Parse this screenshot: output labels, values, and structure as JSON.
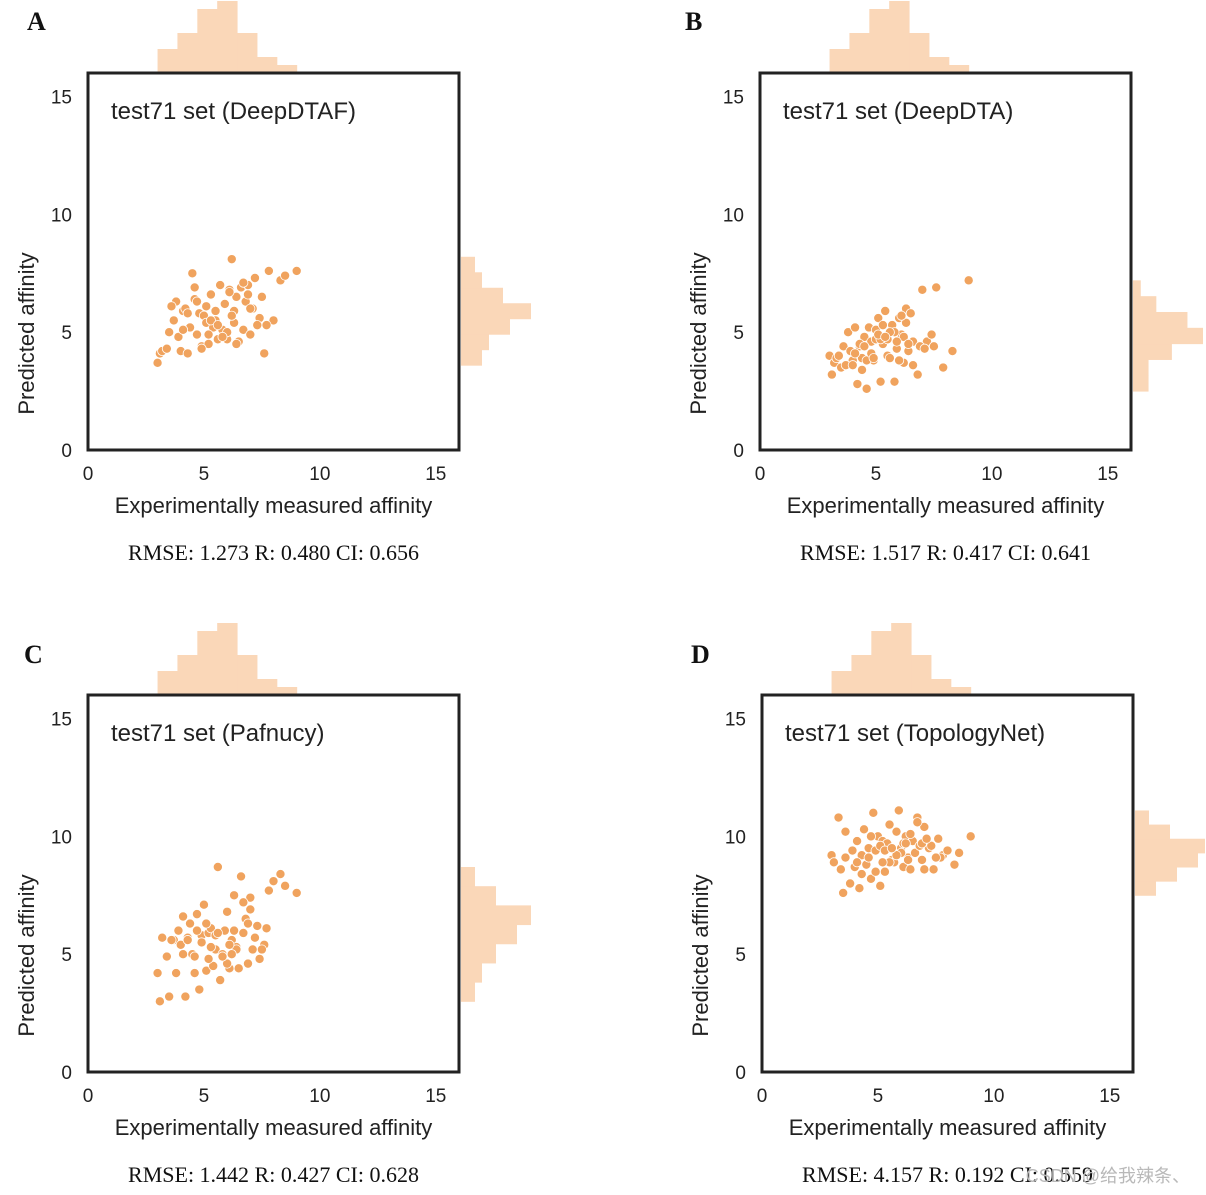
{
  "watermark": "CSDN @给我辣条、",
  "style": {
    "point_color": "#f0a35e",
    "point_edge": "#ffffff",
    "hist_color": "#fad7b8",
    "frame_color": "#222222"
  },
  "chart_data": [
    {
      "type": "scatter",
      "panel": "A",
      "title": "test71 set (DeepDTAF)",
      "xlabel": "Experimentally measured affinity",
      "ylabel": "Predicted affinity",
      "xlim": [
        0,
        16
      ],
      "ylim": [
        0,
        16
      ],
      "xticks": [
        0,
        5,
        10,
        15
      ],
      "yticks": [
        0,
        5,
        10,
        15
      ],
      "stats": "RMSE: 1.273 R: 0.480 CI: 0.656",
      "x": [
        3.0,
        3.1,
        3.2,
        3.4,
        3.5,
        3.7,
        3.8,
        3.9,
        4.0,
        4.1,
        4.2,
        4.3,
        4.4,
        4.5,
        4.6,
        4.7,
        4.8,
        4.9,
        5.0,
        5.1,
        5.2,
        5.3,
        5.4,
        5.5,
        5.6,
        5.7,
        5.8,
        5.9,
        6.0,
        6.1,
        6.2,
        6.3,
        6.4,
        6.5,
        6.6,
        6.7,
        6.8,
        6.9,
        7.0,
        7.2,
        7.4,
        7.6,
        7.8,
        8.0,
        8.3,
        9.0,
        4.6,
        5.1,
        5.5,
        6.0,
        6.4,
        6.9,
        7.3,
        4.3,
        5.8,
        6.3,
        7.1,
        4.9,
        5.3,
        6.7,
        7.7,
        4.1,
        6.1,
        7.0,
        5.6,
        4.7,
        3.6,
        8.5,
        6.2,
        5.2,
        7.5
      ],
      "y": [
        3.7,
        4.1,
        4.2,
        4.3,
        5.0,
        5.5,
        6.3,
        4.8,
        4.2,
        5.9,
        6.0,
        4.1,
        5.2,
        7.5,
        6.4,
        4.9,
        5.8,
        4.4,
        5.7,
        5.4,
        4.5,
        6.6,
        5.2,
        5.9,
        4.7,
        7.0,
        5.1,
        6.2,
        4.7,
        6.8,
        8.1,
        5.4,
        6.5,
        4.6,
        6.9,
        5.1,
        6.3,
        7.0,
        4.9,
        7.3,
        5.6,
        4.1,
        7.6,
        5.5,
        7.2,
        7.6,
        6.9,
        6.1,
        5.5,
        5.0,
        4.5,
        6.6,
        5.3,
        5.8,
        4.8,
        5.9,
        6.0,
        4.3,
        5.5,
        7.1,
        5.3,
        5.1,
        6.7,
        6.0,
        5.3,
        6.3,
        6.1,
        7.4,
        5.7,
        4.9,
        6.5
      ],
      "histx": {
        "range": [
          3,
          9
        ],
        "counts": [
          3,
          5,
          8,
          9,
          5,
          2,
          1
        ]
      },
      "histy": {
        "range": [
          3.6,
          8.2
        ],
        "counts": [
          3,
          4,
          7,
          10,
          6,
          3,
          2
        ]
      }
    },
    {
      "type": "scatter",
      "panel": "B",
      "title": "test71 set (DeepDTA)",
      "xlabel": "Experimentally measured affinity",
      "ylabel": "Predicted affinity",
      "xlim": [
        0,
        16
      ],
      "ylim": [
        0,
        16
      ],
      "xticks": [
        0,
        5,
        10,
        15
      ],
      "yticks": [
        0,
        5,
        10,
        15
      ],
      "stats": "RMSE: 1.517 R: 0.417 CI: 0.641",
      "x": [
        3.0,
        3.1,
        3.2,
        3.3,
        3.5,
        3.6,
        3.8,
        3.9,
        4.0,
        4.1,
        4.2,
        4.3,
        4.4,
        4.5,
        4.6,
        4.7,
        4.8,
        4.9,
        5.0,
        5.1,
        5.2,
        5.3,
        5.4,
        5.5,
        5.6,
        5.7,
        5.8,
        5.9,
        6.0,
        6.1,
        6.2,
        6.3,
        6.4,
        6.5,
        6.6,
        6.8,
        7.0,
        7.2,
        7.4,
        7.6,
        7.9,
        8.3,
        9.0,
        4.3,
        4.6,
        5.0,
        5.5,
        6.0,
        6.3,
        6.9,
        4.1,
        5.2,
        5.8,
        6.6,
        7.1,
        3.7,
        4.8,
        5.3,
        6.2,
        4.4,
        5.6,
        6.4,
        3.4,
        4.9,
        5.9,
        7.5,
        4.0,
        5.1,
        6.1,
        4.5,
        5.4
      ],
      "y": [
        4.0,
        3.2,
        3.7,
        3.9,
        3.5,
        4.4,
        5.0,
        4.2,
        3.8,
        5.2,
        2.8,
        4.4,
        3.9,
        4.8,
        2.6,
        5.2,
        4.6,
        3.8,
        4.7,
        5.6,
        2.9,
        4.5,
        5.9,
        4.0,
        3.9,
        5.3,
        2.9,
        4.3,
        5.6,
        4.9,
        3.7,
        6.0,
        4.2,
        5.8,
        4.6,
        3.2,
        6.8,
        4.6,
        4.9,
        6.9,
        3.5,
        4.2,
        7.2,
        4.5,
        3.8,
        5.1,
        4.7,
        3.8,
        5.4,
        4.4,
        4.1,
        4.7,
        5.0,
        3.6,
        4.3,
        3.6,
        4.1,
        5.3,
        4.8,
        3.4,
        5.0,
        4.5,
        4.0,
        3.9,
        4.6,
        4.4,
        3.6,
        4.9,
        5.7,
        4.4,
        4.8
      ],
      "histx": {
        "range": [
          3,
          9
        ],
        "counts": [
          3,
          5,
          8,
          9,
          5,
          2,
          1
        ]
      },
      "histy": {
        "range": [
          2.5,
          7.2
        ],
        "counts": [
          2,
          2,
          5,
          9,
          7,
          3,
          1
        ]
      }
    },
    {
      "type": "scatter",
      "panel": "C",
      "title": "test71 set (Pafnucy)",
      "xlabel": "Experimentally measured affinity",
      "ylabel": "Predicted affinity",
      "xlim": [
        0,
        16
      ],
      "ylim": [
        0,
        16
      ],
      "xticks": [
        0,
        5,
        10,
        15
      ],
      "yticks": [
        0,
        5,
        10,
        15
      ],
      "stats": "RMSE: 1.442 R: 0.427 CI: 0.628",
      "x": [
        3.0,
        3.1,
        3.2,
        3.4,
        3.5,
        3.7,
        3.8,
        3.9,
        4.0,
        4.1,
        4.2,
        4.3,
        4.4,
        4.5,
        4.6,
        4.7,
        4.8,
        4.9,
        5.0,
        5.1,
        5.2,
        5.3,
        5.4,
        5.5,
        5.6,
        5.7,
        5.8,
        5.9,
        6.0,
        6.1,
        6.2,
        6.3,
        6.4,
        6.5,
        6.6,
        6.7,
        6.8,
        6.9,
        7.0,
        7.2,
        7.4,
        7.6,
        7.8,
        8.0,
        8.3,
        9.0,
        4.6,
        5.1,
        5.5,
        6.0,
        6.4,
        6.9,
        7.3,
        4.3,
        5.8,
        6.3,
        7.1,
        4.9,
        5.3,
        6.7,
        7.7,
        4.1,
        6.1,
        7.0,
        5.6,
        4.7,
        3.6,
        8.5,
        6.2,
        5.2,
        7.5
      ],
      "y": [
        4.2,
        3.0,
        5.7,
        4.9,
        3.2,
        5.6,
        4.2,
        6.0,
        5.4,
        6.6,
        3.2,
        5.7,
        6.3,
        5.0,
        4.9,
        6.7,
        3.5,
        5.8,
        7.1,
        4.3,
        5.9,
        6.1,
        4.5,
        5.2,
        8.7,
        3.9,
        5.0,
        6.0,
        6.8,
        4.4,
        5.6,
        7.5,
        5.3,
        4.4,
        8.3,
        5.9,
        6.5,
        4.6,
        7.4,
        5.7,
        4.8,
        5.4,
        7.7,
        8.1,
        8.4,
        7.6,
        4.2,
        6.3,
        5.8,
        4.6,
        5.2,
        6.3,
        6.2,
        5.6,
        4.9,
        6.0,
        5.2,
        5.5,
        5.3,
        7.2,
        6.1,
        5.0,
        5.4,
        6.9,
        5.9,
        6.0,
        5.6,
        7.9,
        5.0,
        4.8,
        5.2
      ],
      "histx": {
        "range": [
          3,
          9
        ],
        "counts": [
          3,
          5,
          8,
          9,
          5,
          2,
          1
        ]
      },
      "histy": {
        "range": [
          3.0,
          8.7
        ],
        "counts": [
          2,
          3,
          5,
          8,
          10,
          5,
          2
        ]
      }
    },
    {
      "type": "scatter",
      "panel": "D",
      "title": "test71 set (TopologyNet)",
      "xlabel": "Experimentally measured affinity",
      "ylabel": "Predicted affinity",
      "xlim": [
        0,
        16
      ],
      "ylim": [
        0,
        16
      ],
      "xticks": [
        0,
        5,
        10,
        15
      ],
      "yticks": [
        0,
        5,
        10,
        15
      ],
      "stats": "RMSE: 4.157 R: 0.192 CI: 0.559",
      "x": [
        3.0,
        3.1,
        3.3,
        3.4,
        3.5,
        3.6,
        3.8,
        3.9,
        4.0,
        4.1,
        4.2,
        4.3,
        4.4,
        4.5,
        4.6,
        4.7,
        4.8,
        4.9,
        5.0,
        5.1,
        5.2,
        5.3,
        5.4,
        5.5,
        5.6,
        5.7,
        5.8,
        5.9,
        6.0,
        6.1,
        6.2,
        6.3,
        6.4,
        6.5,
        6.6,
        6.7,
        6.8,
        6.9,
        7.0,
        7.2,
        7.4,
        7.6,
        7.8,
        8.0,
        8.3,
        9.0,
        4.6,
        5.1,
        5.5,
        6.0,
        6.4,
        6.9,
        7.3,
        4.3,
        5.8,
        6.3,
        7.1,
        4.9,
        5.3,
        6.7,
        7.7,
        4.1,
        6.1,
        7.0,
        5.6,
        4.7,
        3.6,
        8.5,
        6.2,
        5.2,
        7.5
      ],
      "y": [
        9.2,
        8.9,
        10.8,
        8.6,
        7.6,
        10.2,
        8.0,
        9.4,
        8.7,
        9.8,
        7.8,
        9.2,
        10.3,
        8.8,
        9.5,
        8.2,
        11.0,
        9.4,
        10.0,
        7.9,
        9.8,
        8.5,
        9.7,
        10.5,
        9.0,
        8.9,
        10.2,
        11.1,
        9.5,
        8.7,
        10.0,
        9.1,
        8.6,
        9.8,
        9.3,
        10.8,
        9.6,
        9.0,
        10.4,
        9.5,
        8.6,
        9.9,
        9.2,
        9.4,
        8.8,
        10.0,
        9.1,
        9.6,
        8.9,
        9.3,
        10.1,
        9.7,
        9.6,
        8.4,
        9.2,
        9.0,
        9.9,
        8.5,
        9.4,
        10.6,
        9.1,
        8.9,
        9.7,
        8.6,
        9.5,
        10.0,
        9.1,
        9.3,
        9.7,
        8.9,
        9.1
      ],
      "histx": {
        "range": [
          3,
          9
        ],
        "counts": [
          3,
          5,
          8,
          9,
          5,
          2,
          1
        ]
      },
      "histy": {
        "range": [
          7.5,
          11.1
        ],
        "counts": [
          3,
          6,
          9,
          10,
          5,
          2
        ]
      }
    }
  ]
}
